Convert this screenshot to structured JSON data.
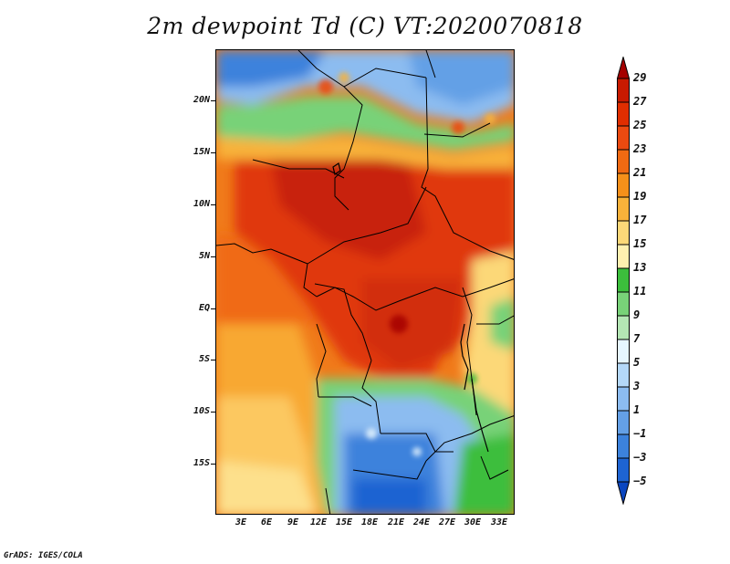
{
  "title": "2m dewpoint Td (C) VT:2020070818",
  "credit": "GrADS: IGES/COLA",
  "lat_labels": [
    "20N",
    "15N",
    "10N",
    "5N",
    "EQ",
    "5S",
    "10S",
    "15S"
  ],
  "lon_labels": [
    "3E",
    "6E",
    "9E",
    "12E",
    "15E",
    "18E",
    "21E",
    "24E",
    "27E",
    "30E",
    "33E"
  ],
  "colorbar": {
    "labels": [
      "29",
      "27",
      "25",
      "23",
      "21",
      "19",
      "17",
      "15",
      "13",
      "11",
      "9",
      "7",
      "5",
      "3",
      "1",
      "−1",
      "−3",
      "−5"
    ],
    "colors": [
      "#a50000",
      "#c81a00",
      "#e02e00",
      "#eb4a10",
      "#f06a12",
      "#f5901a",
      "#f8b23a",
      "#fcd878",
      "#fff0b0",
      "#3cbe3c",
      "#78d278",
      "#b4e6b4",
      "#e6f6ff",
      "#b4d8f8",
      "#8cbcf0",
      "#64a0e6",
      "#3c82dc",
      "#1e64d2",
      "#0a46c0"
    ]
  }
}
